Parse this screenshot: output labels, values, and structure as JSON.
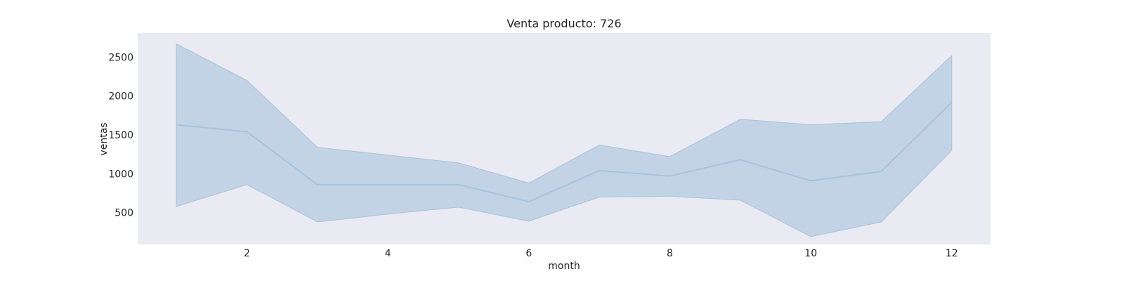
{
  "chart_data": {
    "type": "area",
    "title": "Venta producto: 726",
    "xlabel": "month",
    "ylabel": "ventas",
    "x": [
      1,
      2,
      3,
      4,
      5,
      6,
      7,
      8,
      9,
      10,
      11,
      12
    ],
    "series": [
      {
        "values": [
          1630,
          1540,
          860,
          860,
          860,
          640,
          1040,
          970,
          1180,
          910,
          1030,
          1920
        ],
        "lower": [
          580,
          860,
          380,
          480,
          570,
          390,
          700,
          710,
          660,
          190,
          380,
          1300
        ],
        "upper": [
          2670,
          2200,
          1340,
          1240,
          1140,
          880,
          1370,
          1220,
          1700,
          1630,
          1670,
          2520
        ]
      }
    ],
    "xticks": [
      2,
      4,
      6,
      8,
      10,
      12
    ],
    "yticks": [
      500,
      1000,
      1500,
      2000,
      2500
    ],
    "xlim": [
      0.45,
      12.55
    ],
    "ylim": [
      90,
      2810
    ],
    "grid": false,
    "colors": {
      "line": "#a6c2dc",
      "band": "#c2d3e5",
      "band_edge": "#a8c3dc",
      "plot_bg": "#eaeaf2"
    }
  }
}
